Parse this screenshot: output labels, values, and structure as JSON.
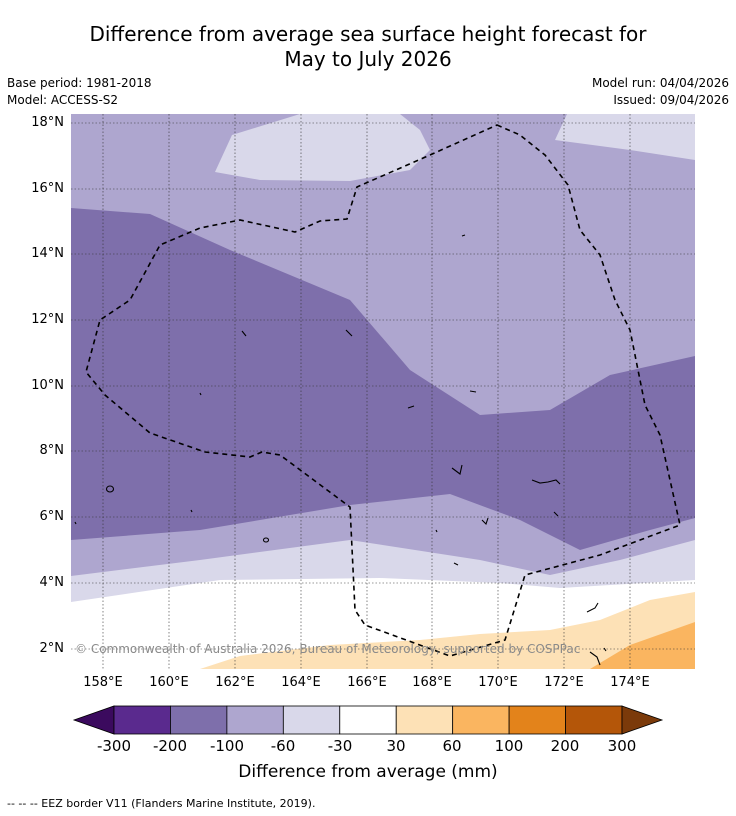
{
  "title_line1": "Difference from average sea surface height forecast for",
  "title_line2": "May to July 2026",
  "meta": {
    "base_period": "Base period: 1981-2018",
    "model": "Model: ACCESS-S2",
    "model_run": "Model run: 04/04/2026",
    "issued": "Issued: 09/04/2026"
  },
  "axes": {
    "lat_labels": [
      "18°N",
      "16°N",
      "14°N",
      "12°N",
      "10°N",
      "8°N",
      "6°N",
      "4°N",
      "2°N"
    ],
    "lon_labels": [
      "158°E",
      "160°E",
      "162°E",
      "164°E",
      "166°E",
      "168°E",
      "170°E",
      "172°E",
      "174°E"
    ]
  },
  "credit": "© Commonwealth of Australia 2026, Bureau of Meteorology, supported by COSPPac",
  "colorbar": {
    "title": "Difference from average (mm)",
    "ticks": [
      "-300",
      "-200",
      "-100",
      "-60",
      "-30",
      "30",
      "60",
      "100",
      "200",
      "300"
    ],
    "colors": [
      "#5a2a8e",
      "#7e6fab",
      "#aea6cf",
      "#d9d8ea",
      "#ffffff",
      "#fde1b6",
      "#fab560",
      "#e3831b",
      "#b45609"
    ],
    "low_extend_color": "#3b0a5e",
    "high_extend_color": "#7b3a0a"
  },
  "legend_footer": "-- -- -- EEZ border V11 (Flanders Marine Institute, 2019)."
}
